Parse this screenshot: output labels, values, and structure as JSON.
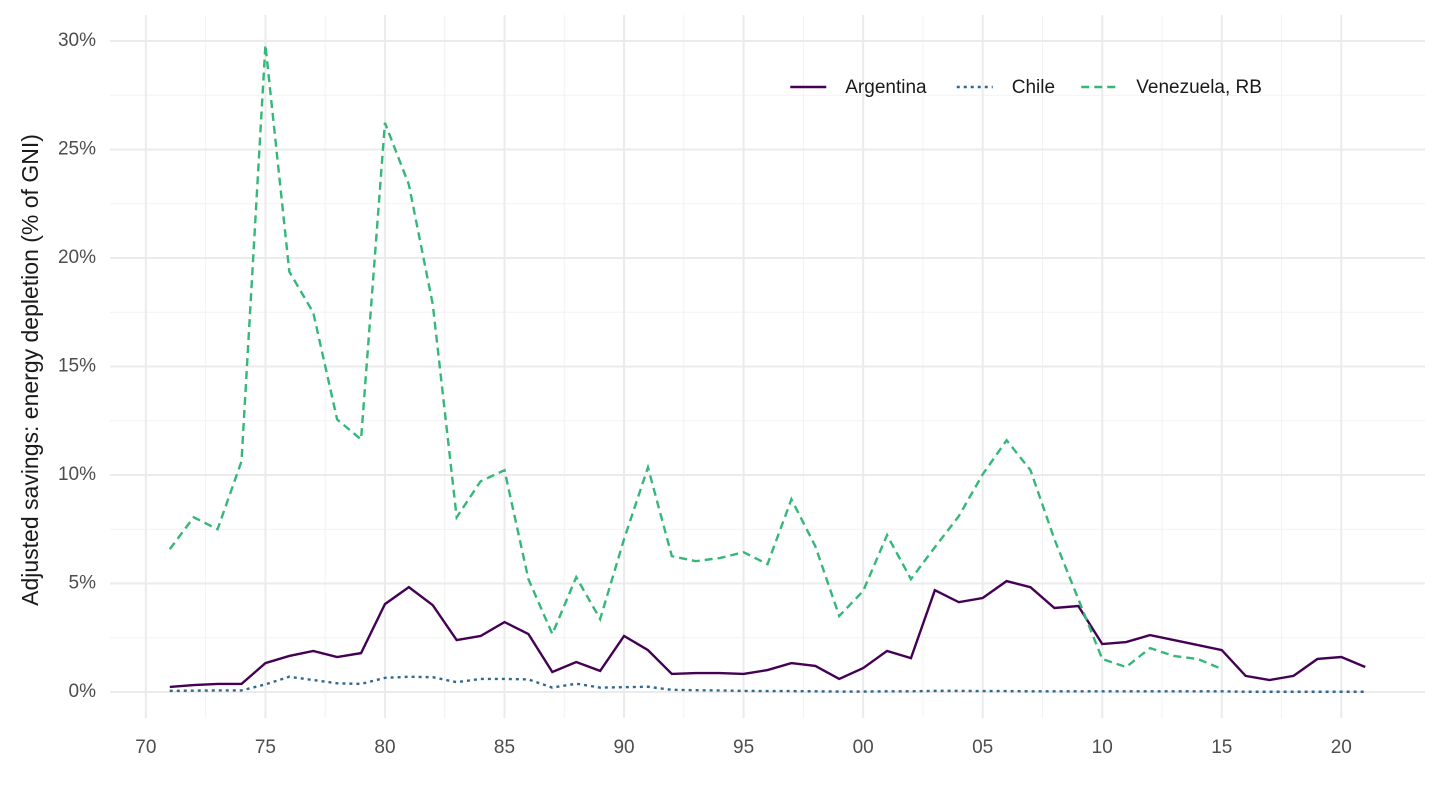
{
  "chart_data": {
    "type": "line",
    "y_label": "Adjusted savings: energy depletion (% of GNI)",
    "x": [
      1971,
      1972,
      1973,
      1974,
      1975,
      1976,
      1977,
      1978,
      1979,
      1980,
      1981,
      1982,
      1983,
      1984,
      1985,
      1986,
      1987,
      1988,
      1989,
      1990,
      1991,
      1992,
      1993,
      1994,
      1995,
      1996,
      1997,
      1998,
      1999,
      2000,
      2001,
      2002,
      2003,
      2004,
      2005,
      2006,
      2007,
      2008,
      2009,
      2010,
      2011,
      2012,
      2013,
      2014,
      2015,
      2016,
      2017,
      2018,
      2019,
      2020,
      2021
    ],
    "series": [
      {
        "name": "Argentina",
        "color": "#440154",
        "dash": "solid",
        "values": [
          0.23,
          0.32,
          0.37,
          0.37,
          1.33,
          1.66,
          1.89,
          1.61,
          1.79,
          4.05,
          4.83,
          4.0,
          2.39,
          2.58,
          3.22,
          2.67,
          0.92,
          1.38,
          0.97,
          2.58,
          1.93,
          0.83,
          0.87,
          0.87,
          0.83,
          1.01,
          1.33,
          1.2,
          0.6,
          1.1,
          1.89,
          1.56,
          4.69,
          4.14,
          4.33,
          5.11,
          4.83,
          3.87,
          3.96,
          2.21,
          2.3,
          2.62,
          2.39,
          2.16,
          1.93,
          0.74,
          0.55,
          0.74,
          1.52,
          1.61,
          1.15
        ]
      },
      {
        "name": "Chile",
        "color": "#31688e",
        "dash": "dotted",
        "values": [
          0.05,
          0.06,
          0.07,
          0.07,
          0.35,
          0.7,
          0.55,
          0.4,
          0.37,
          0.65,
          0.7,
          0.68,
          0.45,
          0.6,
          0.6,
          0.58,
          0.2,
          0.38,
          0.2,
          0.22,
          0.24,
          0.1,
          0.08,
          0.07,
          0.05,
          0.04,
          0.04,
          0.03,
          0.02,
          0.02,
          0.03,
          0.03,
          0.05,
          0.05,
          0.04,
          0.04,
          0.03,
          0.03,
          0.03,
          0.03,
          0.03,
          0.03,
          0.03,
          0.03,
          0.03,
          0.01,
          0.01,
          0.01,
          0.01,
          0.01,
          0.01
        ]
      },
      {
        "name": "Venezuela, RB",
        "color": "#35b779",
        "dash": "dashed",
        "values": [
          6.58,
          8.05,
          7.5,
          10.63,
          29.82,
          19.37,
          17.49,
          12.56,
          11.64,
          26.23,
          23.38,
          17.86,
          8.05,
          9.71,
          10.22,
          5.2,
          2.67,
          5.29,
          3.36,
          7.04,
          10.35,
          6.26,
          6.03,
          6.17,
          6.44,
          5.89,
          8.88,
          6.72,
          3.5,
          4.65,
          7.23,
          5.2,
          6.67,
          8.1,
          10.03,
          11.6,
          10.22,
          7.04,
          4.28,
          1.52,
          1.15,
          2.02,
          1.66,
          1.52,
          1.06,
          null,
          null,
          null,
          null,
          null,
          null
        ]
      }
    ],
    "xlim": [
      1968.5,
      2023.5
    ],
    "xticks": [
      {
        "value": 1970,
        "label": "70"
      },
      {
        "value": 1975,
        "label": "75"
      },
      {
        "value": 1980,
        "label": "80"
      },
      {
        "value": 1985,
        "label": "85"
      },
      {
        "value": 1990,
        "label": "90"
      },
      {
        "value": 1995,
        "label": "95"
      },
      {
        "value": 2000,
        "label": "00"
      },
      {
        "value": 2005,
        "label": "05"
      },
      {
        "value": 2010,
        "label": "10"
      },
      {
        "value": 2015,
        "label": "15"
      },
      {
        "value": 2020,
        "label": "20"
      }
    ],
    "ylim": [
      -1.2,
      31.2
    ],
    "yticks": [
      {
        "value": 0,
        "label": "0%"
      },
      {
        "value": 5,
        "label": "5%"
      },
      {
        "value": 10,
        "label": "10%"
      },
      {
        "value": 15,
        "label": "15%"
      },
      {
        "value": 20,
        "label": "20%"
      },
      {
        "value": 25,
        "label": "25%"
      },
      {
        "value": 30,
        "label": "30%"
      }
    ],
    "grid": true,
    "legend": "top"
  }
}
